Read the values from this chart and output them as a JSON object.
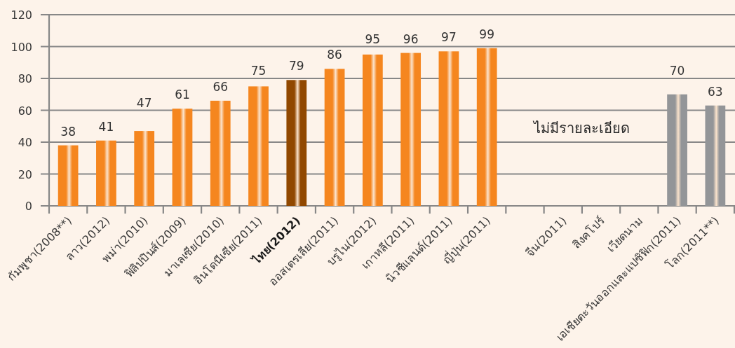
{
  "chart_data": {
    "type": "bar",
    "categories": [
      "กัมพูชา(2008**)",
      "ลาว(2012)",
      "พม่า(2010)",
      "ฟิลิปปินส์(2009)",
      "มาเลเซีย(2010)",
      "อินโดนีเซีย(2011)",
      "**ไทย(2012)**",
      "ออสเตรเลีย(2011)",
      "บรูไน(2012)",
      "เกาหลี(2011)",
      "นิวซีแลนด์(2011)",
      "ญี่ปุ่น(2011)",
      null,
      "จีน(2011)",
      "สิงคโปร์",
      "เวียดนาม",
      "เอเชียตะวันออกและแปซิฟิก(2011)",
      "โลก(2011**)"
    ],
    "values": [
      38,
      41,
      47,
      61,
      66,
      75,
      79,
      86,
      95,
      96,
      97,
      99,
      null,
      null,
      null,
      null,
      70,
      63
    ],
    "colors": [
      "#f5861f",
      "#f5861f",
      "#f5861f",
      "#f5861f",
      "#f5861f",
      "#f5861f",
      "#914800",
      "#f5861f",
      "#f5861f",
      "#f5861f",
      "#f5861f",
      "#f5861f",
      null,
      null,
      null,
      null,
      "#939598",
      "#939598"
    ],
    "ylim": [
      0,
      120
    ],
    "yticks": [
      0,
      20,
      40,
      60,
      80,
      100,
      120
    ],
    "grid": "y",
    "data_labels": true,
    "annotations": [
      "ไม่มีรายละเอียด"
    ]
  }
}
